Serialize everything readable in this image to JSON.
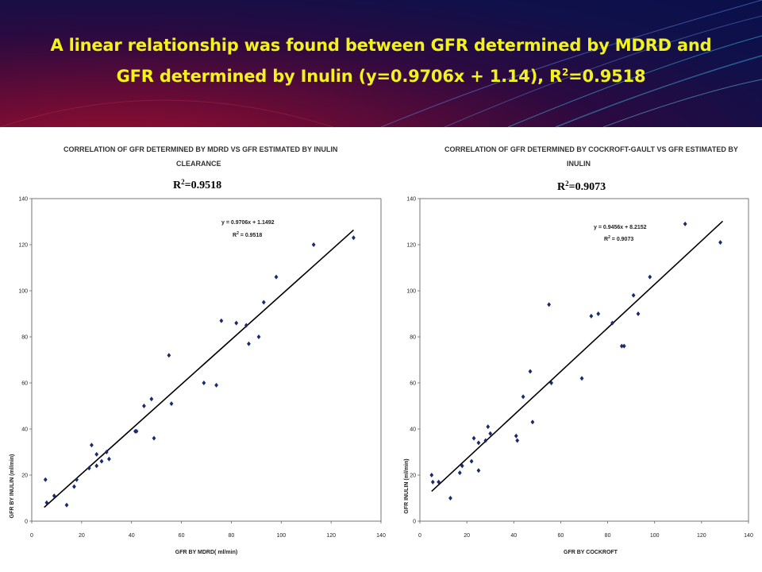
{
  "header": {
    "title_line1": "A linear relationship was found between GFR determined by MDRD and",
    "title_line2_pre": "GFR determined by Inulin (y=0.9706x + 1.14), R",
    "title_sup": "2",
    "title_line2_post": "=0.9518"
  },
  "colors": {
    "title": "#f2f21c",
    "marker": "#1a2a6e",
    "line": "#000000"
  },
  "chart_data": [
    {
      "type": "scatter",
      "title_line1": "CORRELATION OF GFR DETERMINED BY MDRD VS GFR ESTIMATED BY INULIN",
      "title_line2": "CLEARANCE",
      "r2_label": "R",
      "r2_sup": "2",
      "r2_value": "=0.9518",
      "equation": "y = 0.9706x + 1.1492",
      "eq_r": "R",
      "eq_sup": "2",
      "eq_r2": " = 0.9518",
      "xlabel": "GFR BY MDRD( ml/min)",
      "ylabel": "GFR BY INULIN (ml/min)",
      "xlim": [
        0,
        140
      ],
      "ylim": [
        0,
        140
      ],
      "xticks": [
        "0",
        "20",
        "40",
        "60",
        "80",
        "100",
        "120",
        "140"
      ],
      "yticks": [
        "0",
        "20",
        "40",
        "60",
        "80",
        "100",
        "120",
        "140"
      ],
      "trendline": {
        "slope": 0.9706,
        "intercept": 1.1492,
        "x_range": [
          5,
          129
        ]
      },
      "points": [
        [
          5.5,
          18
        ],
        [
          6,
          8
        ],
        [
          9,
          11
        ],
        [
          14,
          7
        ],
        [
          17,
          15
        ],
        [
          18,
          18
        ],
        [
          23,
          23
        ],
        [
          24,
          33
        ],
        [
          26,
          24
        ],
        [
          26,
          29
        ],
        [
          28,
          26
        ],
        [
          30,
          30
        ],
        [
          31,
          27
        ],
        [
          41.5,
          39
        ],
        [
          42,
          39
        ],
        [
          45,
          50
        ],
        [
          48,
          53
        ],
        [
          49,
          36
        ],
        [
          55,
          72
        ],
        [
          56,
          51
        ],
        [
          69,
          60
        ],
        [
          74,
          59
        ],
        [
          76,
          87
        ],
        [
          82,
          86
        ],
        [
          86,
          85
        ],
        [
          87,
          77
        ],
        [
          91,
          80
        ],
        [
          93,
          95
        ],
        [
          98,
          106
        ],
        [
          113,
          120
        ],
        [
          129,
          123
        ]
      ]
    },
    {
      "type": "scatter",
      "title_line1": "CORRELATION OF GFR DETERMINED BY COCKROFT-GAULT VS GFR ESTIMATED BY",
      "title_line2": "INULIN",
      "r2_label": "R",
      "r2_sup": "2",
      "r2_value": "=0.9073",
      "equation": "y = 0.9456x + 8.2152",
      "eq_r": "R",
      "eq_sup": "2",
      "eq_r2": " = 0.9073",
      "xlabel": "GFR BY COCKROFT",
      "ylabel": "GFR INULIN (ml/min)",
      "xlim": [
        0,
        140
      ],
      "ylim": [
        0,
        140
      ],
      "xticks": [
        "0",
        "20",
        "40",
        "60",
        "80",
        "100",
        "120",
        "140"
      ],
      "yticks": [
        "0",
        "20",
        "40",
        "60",
        "80",
        "100",
        "120",
        "140"
      ],
      "trendline": {
        "slope": 0.9456,
        "intercept": 8.2152,
        "x_range": [
          5,
          129
        ]
      },
      "points": [
        [
          5,
          20
        ],
        [
          5.5,
          17
        ],
        [
          8,
          17
        ],
        [
          13,
          10
        ],
        [
          17,
          21
        ],
        [
          18,
          24
        ],
        [
          22,
          26
        ],
        [
          23,
          36
        ],
        [
          25,
          22
        ],
        [
          25,
          34
        ],
        [
          28,
          35
        ],
        [
          29,
          41
        ],
        [
          30,
          38
        ],
        [
          41,
          37
        ],
        [
          41.5,
          35
        ],
        [
          44,
          54
        ],
        [
          47,
          65
        ],
        [
          48,
          43
        ],
        [
          55,
          94
        ],
        [
          56,
          60
        ],
        [
          69,
          62
        ],
        [
          73,
          89
        ],
        [
          76,
          90
        ],
        [
          82,
          86
        ],
        [
          86,
          76
        ],
        [
          87,
          76
        ],
        [
          91,
          98
        ],
        [
          93,
          90
        ],
        [
          98,
          106
        ],
        [
          113,
          129
        ],
        [
          128,
          121
        ]
      ]
    }
  ]
}
